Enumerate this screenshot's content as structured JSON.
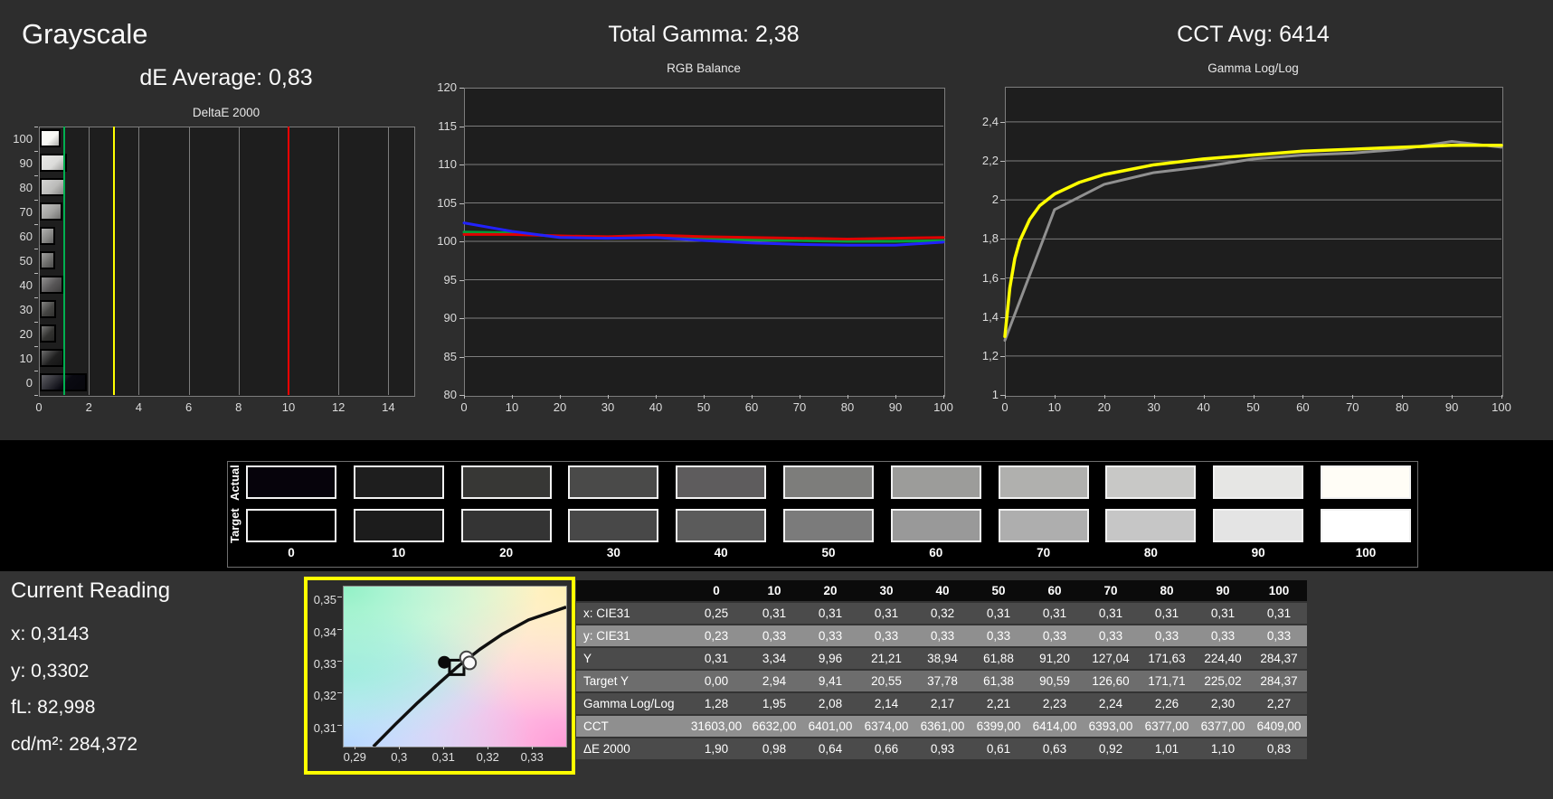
{
  "grayscale_panel": {
    "title": "Grayscale",
    "de_average": "dE Average: 0,83"
  },
  "chart_data": [
    {
      "id": "deltae",
      "type": "bar",
      "orientation": "horizontal",
      "title": "DeltaE 2000",
      "categories": [
        0,
        10,
        20,
        30,
        40,
        50,
        60,
        70,
        80,
        90,
        100
      ],
      "values": [
        1.9,
        0.98,
        0.64,
        0.66,
        0.93,
        0.61,
        0.63,
        0.92,
        1.01,
        1.1,
        0.83
      ],
      "bar_colors": [
        "#0a0a12",
        "#1f1f1f",
        "#333331",
        "#454543",
        "#585657",
        "#6f6f6d",
        "#8a8a88",
        "#a2a2a0",
        "#bcbcba",
        "#dcdcda",
        "#f8f8f4"
      ],
      "xlim": [
        0,
        15
      ],
      "x_ticks": [
        0,
        2,
        4,
        6,
        8,
        10,
        12,
        14
      ],
      "ref_lines": [
        {
          "value": 1,
          "color": "#00b050",
          "name": "good-threshold"
        },
        {
          "value": 3,
          "color": "#ffff00",
          "name": "warning-threshold"
        },
        {
          "value": 10,
          "color": "#ff0000",
          "name": "bad-threshold"
        }
      ],
      "grid": true,
      "legend": "none"
    },
    {
      "id": "rgb_balance",
      "type": "line",
      "header": "Total Gamma: 2,38",
      "title": "RGB Balance",
      "x": [
        0,
        10,
        20,
        30,
        40,
        50,
        60,
        70,
        80,
        90,
        100
      ],
      "series": [
        {
          "name": "Red",
          "color": "#e00000",
          "values": [
            100.9,
            100.9,
            100.7,
            100.6,
            100.8,
            100.6,
            100.5,
            100.4,
            100.3,
            100.4,
            100.5
          ]
        },
        {
          "name": "Green",
          "color": "#00a33c",
          "values": [
            101.2,
            101.1,
            100.6,
            100.5,
            100.5,
            100.3,
            100.2,
            100.1,
            100.0,
            100.0,
            100.1
          ]
        },
        {
          "name": "Blue",
          "color": "#2222ff",
          "values": [
            102.4,
            101.3,
            100.5,
            100.4,
            100.5,
            100.1,
            99.8,
            99.6,
            99.5,
            99.5,
            99.9
          ]
        }
      ],
      "ylim": [
        80,
        120
      ],
      "y_ticks": [
        120,
        115,
        110,
        105,
        100,
        95,
        90,
        85,
        80
      ],
      "x_ticks": [
        0,
        10,
        20,
        30,
        40,
        50,
        60,
        70,
        80,
        90,
        100
      ],
      "grid": true,
      "legend": "none"
    },
    {
      "id": "gamma",
      "type": "line",
      "header": "CCT Avg: 6414",
      "title": "Gamma Log/Log",
      "series": [
        {
          "name": "Target",
          "color": "#ffff00",
          "x": [
            0,
            1,
            2,
            3,
            5,
            7,
            10,
            15,
            20,
            30,
            40,
            50,
            60,
            70,
            80,
            90,
            100
          ],
          "values": [
            1.3,
            1.55,
            1.7,
            1.79,
            1.9,
            1.97,
            2.03,
            2.09,
            2.13,
            2.18,
            2.21,
            2.23,
            2.25,
            2.26,
            2.27,
            2.28,
            2.28
          ]
        },
        {
          "name": "Measured",
          "color": "#909090",
          "x": [
            0,
            10,
            20,
            30,
            40,
            50,
            60,
            70,
            80,
            90,
            100
          ],
          "values": [
            1.28,
            1.95,
            2.08,
            2.14,
            2.17,
            2.21,
            2.23,
            2.24,
            2.26,
            2.3,
            2.27
          ]
        }
      ],
      "ylim": [
        1,
        2.58
      ],
      "y_ticks": [
        {
          "v": 2.4,
          "label": "2,4"
        },
        {
          "v": 2.2,
          "label": "2,2"
        },
        {
          "v": 2.0,
          "label": "2"
        },
        {
          "v": 1.8,
          "label": "1,8"
        },
        {
          "v": 1.6,
          "label": "1,6"
        },
        {
          "v": 1.4,
          "label": "1,4"
        },
        {
          "v": 1.2,
          "label": "1,2"
        },
        {
          "v": 1.0,
          "label": "1"
        }
      ],
      "x_ticks": [
        0,
        10,
        20,
        30,
        40,
        50,
        60,
        70,
        80,
        90,
        100
      ],
      "grid": true,
      "legend": "none"
    },
    {
      "id": "cie",
      "type": "scatter",
      "title": "CIE chromaticity detail",
      "xlim": [
        0.2873,
        0.3375
      ],
      "ylim": [
        0.3035,
        0.3534
      ],
      "x_ticks": [
        {
          "v": 0.29,
          "label": "0,29"
        },
        {
          "v": 0.3,
          "label": "0,3"
        },
        {
          "v": 0.31,
          "label": "0,31"
        },
        {
          "v": 0.32,
          "label": "0,32"
        },
        {
          "v": 0.33,
          "label": "0,33"
        }
      ],
      "y_ticks": [
        {
          "v": 0.35,
          "label": "0,35"
        },
        {
          "v": 0.34,
          "label": "0,34"
        },
        {
          "v": 0.33,
          "label": "0,33"
        },
        {
          "v": 0.32,
          "label": "0,32"
        },
        {
          "v": 0.31,
          "label": "0,31"
        }
      ],
      "locus": [
        [
          0.294,
          0.3035
        ],
        [
          0.299,
          0.3105
        ],
        [
          0.304,
          0.3172
        ],
        [
          0.309,
          0.3235
        ],
        [
          0.313,
          0.3284
        ],
        [
          0.318,
          0.3338
        ],
        [
          0.323,
          0.3385
        ],
        [
          0.329,
          0.343
        ],
        [
          0.3375,
          0.347
        ]
      ],
      "markers": [
        {
          "name": "reading-dot",
          "shape": "dot",
          "x": 0.31,
          "y": 0.3298
        },
        {
          "name": "target-square",
          "shape": "square",
          "x": 0.3128,
          "y": 0.3282
        },
        {
          "name": "white-point-circle",
          "shape": "circle",
          "x": 0.315,
          "y": 0.3312
        },
        {
          "name": "white-point-circle",
          "shape": "circle",
          "x": 0.3157,
          "y": 0.3296
        }
      ]
    }
  ],
  "swatch_strip": {
    "row_labels": [
      "Actual",
      "Target"
    ],
    "levels": [
      "0",
      "10",
      "20",
      "30",
      "40",
      "50",
      "60",
      "70",
      "80",
      "90",
      "100"
    ],
    "actual_colors": [
      "#06030b",
      "#1e1e1e",
      "#373735",
      "#4a4a49",
      "#5e5c5d",
      "#7d7d7b",
      "#9c9c9a",
      "#b0b0ae",
      "#c8c8c6",
      "#e6e6e4",
      "#fffdf6"
    ],
    "target_colors": [
      "#000000",
      "#1c1c1c",
      "#343434",
      "#484848",
      "#5b5b5b",
      "#7b7b7b",
      "#999999",
      "#aeaeae",
      "#c6c6c6",
      "#e4e4e4",
      "#ffffff"
    ]
  },
  "current_reading": {
    "title": "Current Reading",
    "lines": [
      "x: 0,3143",
      "y: 0,3302",
      "fL: 82,998",
      "cd/m²: 284,372"
    ]
  },
  "table": {
    "columns": [
      "",
      "0",
      "10",
      "20",
      "30",
      "40",
      "50",
      "60",
      "70",
      "80",
      "90",
      "100"
    ],
    "rows": [
      {
        "label": "x: CIE31",
        "bg": "#4b4b4b",
        "values": [
          "0,25",
          "0,31",
          "0,31",
          "0,31",
          "0,32",
          "0,31",
          "0,31",
          "0,31",
          "0,31",
          "0,31",
          "0,31"
        ]
      },
      {
        "label": "y: CIE31",
        "bg": "#8f8f8f",
        "values": [
          "0,23",
          "0,33",
          "0,33",
          "0,33",
          "0,33",
          "0,33",
          "0,33",
          "0,33",
          "0,33",
          "0,33",
          "0,33"
        ]
      },
      {
        "label": "Y",
        "bg": "#4b4b4b",
        "values": [
          "0,31",
          "3,34",
          "9,96",
          "21,21",
          "38,94",
          "61,88",
          "91,20",
          "127,04",
          "171,63",
          "224,40",
          "284,37"
        ]
      },
      {
        "label": "Target Y",
        "bg": "#6d6d6d",
        "values": [
          "0,00",
          "2,94",
          "9,41",
          "20,55",
          "37,78",
          "61,38",
          "90,59",
          "126,60",
          "171,71",
          "225,02",
          "284,37"
        ]
      },
      {
        "label": "Gamma Log/Log",
        "bg": "#4b4b4b",
        "values": [
          "1,28",
          "1,95",
          "2,08",
          "2,14",
          "2,17",
          "2,21",
          "2,23",
          "2,24",
          "2,26",
          "2,30",
          "2,27"
        ]
      },
      {
        "label": "CCT",
        "bg": "#8f8f8f",
        "values": [
          "31603,00",
          "6632,00",
          "6401,00",
          "6374,00",
          "6361,00",
          "6399,00",
          "6414,00",
          "6393,00",
          "6377,00",
          "6377,00",
          "6409,00"
        ]
      },
      {
        "label": "ΔE 2000",
        "bg": "#4b4b4b",
        "values": [
          "1,90",
          "0,98",
          "0,64",
          "0,66",
          "0,93",
          "0,61",
          "0,63",
          "0,92",
          "1,01",
          "1,10",
          "0,83"
        ]
      }
    ]
  }
}
